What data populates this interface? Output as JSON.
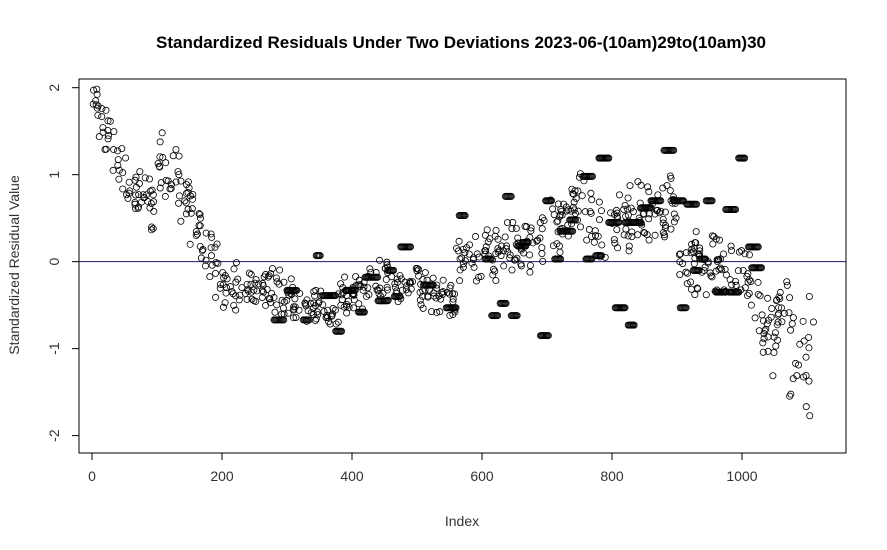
{
  "chart_data": {
    "type": "scatter",
    "title": "Standardized Residuals Under Two Deviations 2023-06-(10am)29to(10am)30",
    "xlabel": "Index",
    "ylabel": "Standardized Residual Value",
    "xlim": [
      -20,
      1160
    ],
    "ylim": [
      -2.2,
      2.1
    ],
    "xticks": [
      0,
      200,
      400,
      600,
      800,
      1000
    ],
    "yticks": [
      -2,
      -1,
      0,
      1,
      2
    ],
    "xtick_labels": [
      "0",
      "200",
      "400",
      "600",
      "800",
      "1000"
    ],
    "ytick_labels": [
      "-2",
      "-1",
      "0",
      "1",
      "2"
    ],
    "reference_line": {
      "y": 0,
      "color": "#1a1a6e"
    },
    "marker": "open-circle",
    "segments": [
      {
        "x_start": 1,
        "x_end": 40,
        "y_start": 1.9,
        "y_end": 1.2,
        "spread": 0.35
      },
      {
        "x_start": 40,
        "x_end": 100,
        "y_start": 1.0,
        "y_end": 0.6,
        "spread": 0.4
      },
      {
        "x_start": 100,
        "x_end": 150,
        "y_start": 1.2,
        "y_end": 0.7,
        "spread": 0.4
      },
      {
        "x_start": 150,
        "x_end": 200,
        "y_start": 0.6,
        "y_end": -0.3,
        "spread": 0.45
      },
      {
        "x_start": 200,
        "x_end": 300,
        "y_start": -0.2,
        "y_end": -0.4,
        "spread": 0.35
      },
      {
        "x_start": 300,
        "x_end": 380,
        "y_start": -0.4,
        "y_end": -0.6,
        "spread": 0.3
      },
      {
        "x_start": 380,
        "x_end": 450,
        "y_start": -0.4,
        "y_end": -0.2,
        "spread": 0.3
      },
      {
        "x_start": 450,
        "x_end": 560,
        "y_start": -0.2,
        "y_end": -0.4,
        "spread": 0.3
      },
      {
        "x_start": 560,
        "x_end": 680,
        "y_start": 0.0,
        "y_end": 0.2,
        "spread": 0.35
      },
      {
        "x_start": 680,
        "x_end": 760,
        "y_start": 0.2,
        "y_end": 0.8,
        "spread": 0.4
      },
      {
        "x_start": 760,
        "x_end": 900,
        "y_start": 0.4,
        "y_end": 0.6,
        "spread": 0.45
      },
      {
        "x_start": 900,
        "x_end": 1000,
        "y_start": 0.0,
        "y_end": -0.1,
        "spread": 0.45
      },
      {
        "x_start": 1000,
        "x_end": 1050,
        "y_start": 0.0,
        "y_end": -0.9,
        "spread": 0.5
      },
      {
        "x_start": 1050,
        "x_end": 1110,
        "y_start": -0.5,
        "y_end": -1.2,
        "spread": 0.9
      }
    ],
    "clusters": [
      {
        "x_start": 280,
        "x_end": 295,
        "y": -0.67
      },
      {
        "x_start": 300,
        "x_end": 315,
        "y": -0.33
      },
      {
        "x_start": 325,
        "x_end": 335,
        "y": -0.67
      },
      {
        "x_start": 345,
        "x_end": 352,
        "y": 0.07
      },
      {
        "x_start": 355,
        "x_end": 375,
        "y": -0.39
      },
      {
        "x_start": 375,
        "x_end": 385,
        "y": -0.8
      },
      {
        "x_start": 390,
        "x_end": 405,
        "y": -0.33
      },
      {
        "x_start": 410,
        "x_end": 420,
        "y": -0.58
      },
      {
        "x_start": 420,
        "x_end": 440,
        "y": -0.18
      },
      {
        "x_start": 440,
        "x_end": 455,
        "y": -0.45
      },
      {
        "x_start": 455,
        "x_end": 465,
        "y": -0.1
      },
      {
        "x_start": 465,
        "x_end": 475,
        "y": -0.4
      },
      {
        "x_start": 475,
        "x_end": 490,
        "y": 0.17
      },
      {
        "x_start": 510,
        "x_end": 525,
        "y": -0.27
      },
      {
        "x_start": 545,
        "x_end": 560,
        "y": -0.53
      },
      {
        "x_start": 565,
        "x_end": 575,
        "y": 0.53
      },
      {
        "x_start": 605,
        "x_end": 615,
        "y": 0.03
      },
      {
        "x_start": 615,
        "x_end": 625,
        "y": -0.62
      },
      {
        "x_start": 628,
        "x_end": 638,
        "y": -0.48
      },
      {
        "x_start": 636,
        "x_end": 646,
        "y": 0.75
      },
      {
        "x_start": 645,
        "x_end": 655,
        "y": -0.62
      },
      {
        "x_start": 655,
        "x_end": 668,
        "y": 0.18
      },
      {
        "x_start": 662,
        "x_end": 672,
        "y": 0.22
      },
      {
        "x_start": 690,
        "x_end": 702,
        "y": -0.85
      },
      {
        "x_start": 698,
        "x_end": 708,
        "y": 0.7
      },
      {
        "x_start": 712,
        "x_end": 722,
        "y": 0.03
      },
      {
        "x_start": 720,
        "x_end": 740,
        "y": 0.35
      },
      {
        "x_start": 735,
        "x_end": 745,
        "y": 0.48
      },
      {
        "x_start": 755,
        "x_end": 770,
        "y": 0.98
      },
      {
        "x_start": 760,
        "x_end": 770,
        "y": 0.03
      },
      {
        "x_start": 775,
        "x_end": 785,
        "y": 0.07
      },
      {
        "x_start": 780,
        "x_end": 795,
        "y": 1.19
      },
      {
        "x_start": 795,
        "x_end": 810,
        "y": 0.45
      },
      {
        "x_start": 805,
        "x_end": 820,
        "y": -0.53
      },
      {
        "x_start": 820,
        "x_end": 845,
        "y": 0.45
      },
      {
        "x_start": 825,
        "x_end": 835,
        "y": -0.73
      },
      {
        "x_start": 845,
        "x_end": 860,
        "y": 0.62
      },
      {
        "x_start": 860,
        "x_end": 875,
        "y": 0.7
      },
      {
        "x_start": 880,
        "x_end": 895,
        "y": 1.28
      },
      {
        "x_start": 895,
        "x_end": 910,
        "y": 0.7
      },
      {
        "x_start": 905,
        "x_end": 915,
        "y": -0.53
      },
      {
        "x_start": 915,
        "x_end": 930,
        "y": 0.66
      },
      {
        "x_start": 925,
        "x_end": 935,
        "y": -0.1
      },
      {
        "x_start": 935,
        "x_end": 945,
        "y": 0.03
      },
      {
        "x_start": 945,
        "x_end": 955,
        "y": 0.7
      },
      {
        "x_start": 960,
        "x_end": 975,
        "y": -0.35
      },
      {
        "x_start": 975,
        "x_end": 990,
        "y": 0.6
      },
      {
        "x_start": 980,
        "x_end": 995,
        "y": -0.35
      },
      {
        "x_start": 995,
        "x_end": 1005,
        "y": 1.19
      },
      {
        "x_start": 1010,
        "x_end": 1025,
        "y": 0.17
      },
      {
        "x_start": 1015,
        "x_end": 1030,
        "y": -0.07
      }
    ]
  }
}
